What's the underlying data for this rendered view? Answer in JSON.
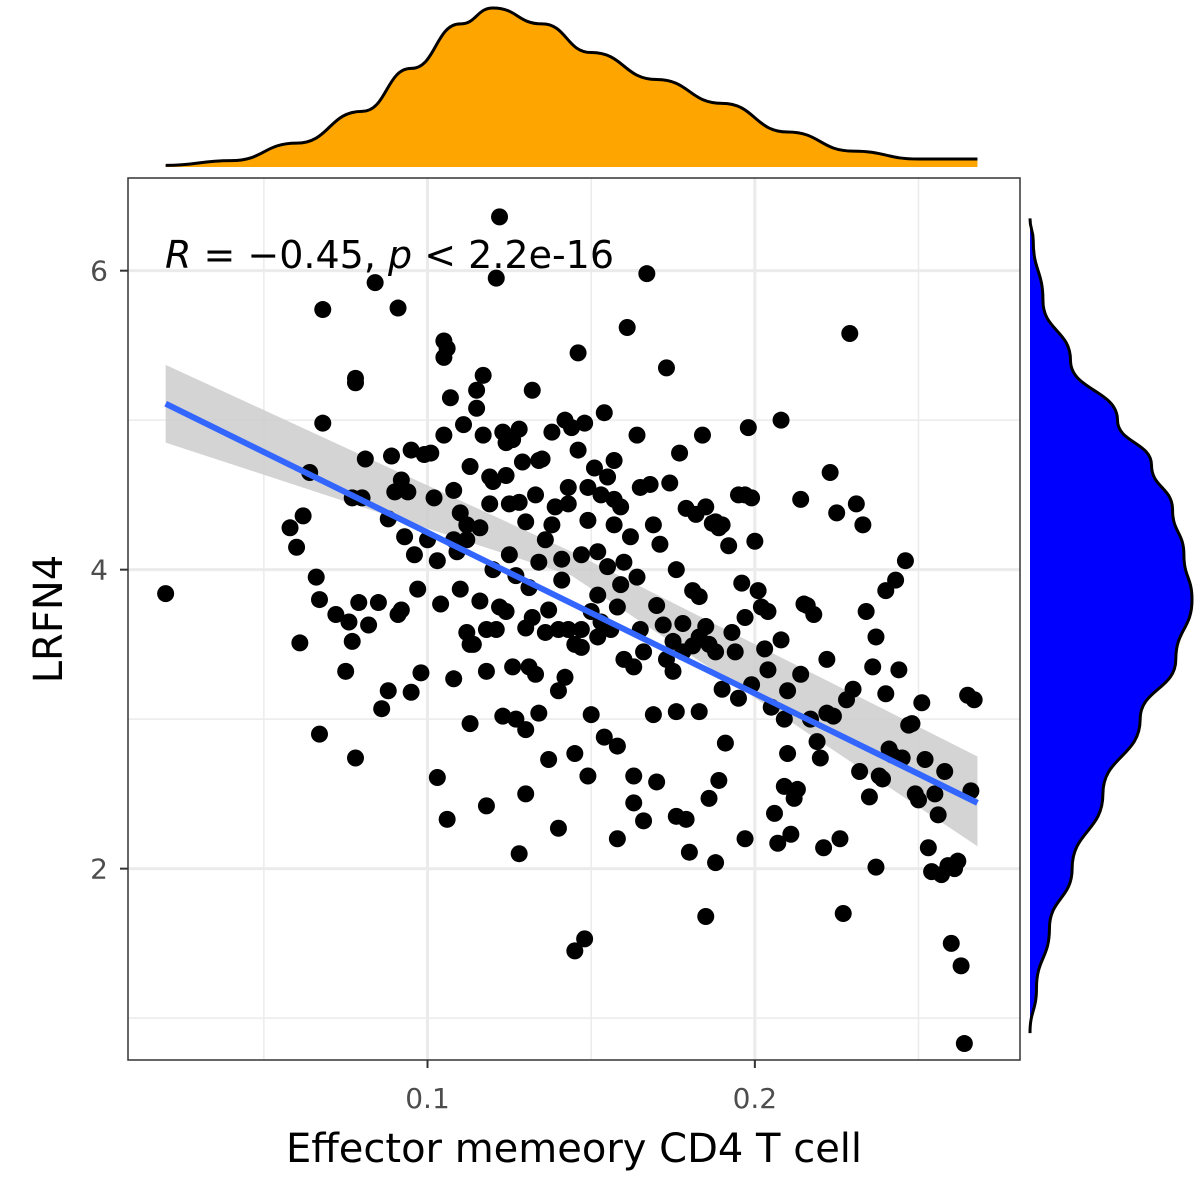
{
  "chart_data": {
    "type": "scatter",
    "xlabel": "Effector memeory CD4 T cell",
    "ylabel": "LRFN4",
    "annotation": {
      "R": "R",
      "eq": " = −0.45, ",
      "p": "p",
      "rest": " < 2.2e-16"
    },
    "xlim": [
      0.0085,
      0.281
    ],
    "ylim": [
      0.72,
      6.62
    ],
    "x_ticks": [
      {
        "value": 0.1,
        "label": "0.1"
      },
      {
        "value": 0.2,
        "label": "0.2"
      }
    ],
    "y_ticks": [
      {
        "value": 2,
        "label": "2"
      },
      {
        "value": 4,
        "label": "4"
      },
      {
        "value": 6,
        "label": "6"
      }
    ],
    "x_minor": [
      0.05,
      0.15,
      0.25
    ],
    "y_minor": [
      1.0,
      3.0,
      5.0
    ],
    "grid": true,
    "regression": {
      "x_start": 0.02,
      "y_start": 5.11,
      "x_end": 0.268,
      "y_end": 2.44,
      "ci_upper_start": 5.37,
      "ci_lower_start": 4.85,
      "ci_upper_mid": 4.12,
      "ci_lower_mid": 3.96,
      "ci_upper_end": 2.75,
      "ci_lower_end": 2.15,
      "color": "#3366ff",
      "ci_color": "#cccccc"
    },
    "marginal_x": {
      "color": "#ffa500",
      "density": [
        [
          0.02,
          0.01
        ],
        [
          0.04,
          0.04
        ],
        [
          0.06,
          0.15
        ],
        [
          0.08,
          0.35
        ],
        [
          0.095,
          0.62
        ],
        [
          0.11,
          0.9
        ],
        [
          0.12,
          1.0
        ],
        [
          0.135,
          0.9
        ],
        [
          0.15,
          0.72
        ],
        [
          0.17,
          0.55
        ],
        [
          0.19,
          0.4
        ],
        [
          0.21,
          0.22
        ],
        [
          0.23,
          0.1
        ],
        [
          0.25,
          0.05
        ],
        [
          0.268,
          0.05
        ]
      ]
    },
    "marginal_y": {
      "color": "#0000ff",
      "density": [
        [
          0.9,
          0.0
        ],
        [
          1.2,
          0.04
        ],
        [
          1.6,
          0.12
        ],
        [
          2.0,
          0.26
        ],
        [
          2.5,
          0.45
        ],
        [
          3.0,
          0.68
        ],
        [
          3.4,
          0.9
        ],
        [
          3.8,
          1.0
        ],
        [
          4.1,
          0.95
        ],
        [
          4.4,
          0.88
        ],
        [
          4.7,
          0.75
        ],
        [
          5.0,
          0.54
        ],
        [
          5.4,
          0.25
        ],
        [
          5.8,
          0.08
        ],
        [
          6.2,
          0.02
        ],
        [
          6.35,
          0.0
        ]
      ]
    },
    "points": [
      [
        0.02,
        3.84
      ],
      [
        0.058,
        4.28
      ],
      [
        0.06,
        4.15
      ],
      [
        0.061,
        3.51
      ],
      [
        0.062,
        4.36
      ],
      [
        0.064,
        4.65
      ],
      [
        0.066,
        3.95
      ],
      [
        0.067,
        3.8
      ],
      [
        0.067,
        2.9
      ],
      [
        0.068,
        4.98
      ],
      [
        0.068,
        5.74
      ],
      [
        0.072,
        3.7
      ],
      [
        0.075,
        3.32
      ],
      [
        0.076,
        3.65
      ],
      [
        0.077,
        4.48
      ],
      [
        0.077,
        3.52
      ],
      [
        0.078,
        5.28
      ],
      [
        0.078,
        5.25
      ],
      [
        0.078,
        2.74
      ],
      [
        0.079,
        3.78
      ],
      [
        0.08,
        4.48
      ],
      [
        0.081,
        4.74
      ],
      [
        0.082,
        3.63
      ],
      [
        0.084,
        5.92
      ],
      [
        0.085,
        3.78
      ],
      [
        0.086,
        3.07
      ],
      [
        0.088,
        3.19
      ],
      [
        0.088,
        4.34
      ],
      [
        0.089,
        4.76
      ],
      [
        0.09,
        4.52
      ],
      [
        0.091,
        5.75
      ],
      [
        0.091,
        3.7
      ],
      [
        0.092,
        4.6
      ],
      [
        0.092,
        3.73
      ],
      [
        0.093,
        4.22
      ],
      [
        0.094,
        4.52
      ],
      [
        0.095,
        4.8
      ],
      [
        0.095,
        3.18
      ],
      [
        0.096,
        4.1
      ],
      [
        0.097,
        3.87
      ],
      [
        0.098,
        3.31
      ],
      [
        0.099,
        4.77
      ],
      [
        0.1,
        4.2
      ],
      [
        0.101,
        4.78
      ],
      [
        0.102,
        4.48
      ],
      [
        0.103,
        4.06
      ],
      [
        0.104,
        3.77
      ],
      [
        0.105,
        5.53
      ],
      [
        0.105,
        4.9
      ],
      [
        0.106,
        5.48
      ],
      [
        0.106,
        2.33
      ],
      [
        0.107,
        5.15
      ],
      [
        0.108,
        4.2
      ],
      [
        0.109,
        4.12
      ],
      [
        0.11,
        4.38
      ],
      [
        0.11,
        3.87
      ],
      [
        0.111,
        4.97
      ],
      [
        0.112,
        4.3
      ],
      [
        0.113,
        4.69
      ],
      [
        0.113,
        2.97
      ],
      [
        0.114,
        3.5
      ],
      [
        0.115,
        5.08
      ],
      [
        0.115,
        5.2
      ],
      [
        0.116,
        4.28
      ],
      [
        0.116,
        3.79
      ],
      [
        0.117,
        4.9
      ],
      [
        0.117,
        5.3
      ],
      [
        0.118,
        3.6
      ],
      [
        0.118,
        3.32
      ],
      [
        0.119,
        4.44
      ],
      [
        0.12,
        4.59
      ],
      [
        0.12,
        4.0
      ],
      [
        0.121,
        5.95
      ],
      [
        0.122,
        3.75
      ],
      [
        0.123,
        4.92
      ],
      [
        0.123,
        3.02
      ],
      [
        0.124,
        4.85
      ],
      [
        0.124,
        3.72
      ],
      [
        0.125,
        4.44
      ],
      [
        0.125,
        4.1
      ],
      [
        0.126,
        3.35
      ],
      [
        0.127,
        3.96
      ],
      [
        0.127,
        3.0
      ],
      [
        0.128,
        4.94
      ],
      [
        0.128,
        4.45
      ],
      [
        0.129,
        4.72
      ],
      [
        0.13,
        4.32
      ],
      [
        0.13,
        3.61
      ],
      [
        0.13,
        2.93
      ],
      [
        0.131,
        3.88
      ],
      [
        0.131,
        3.35
      ],
      [
        0.132,
        5.2
      ],
      [
        0.133,
        4.5
      ],
      [
        0.133,
        3.3
      ],
      [
        0.134,
        3.04
      ],
      [
        0.134,
        4.05
      ],
      [
        0.135,
        4.74
      ],
      [
        0.136,
        4.2
      ],
      [
        0.136,
        3.58
      ],
      [
        0.137,
        3.73
      ],
      [
        0.137,
        2.73
      ],
      [
        0.138,
        4.3
      ],
      [
        0.139,
        4.42
      ],
      [
        0.14,
        3.6
      ],
      [
        0.14,
        3.19
      ],
      [
        0.141,
        4.07
      ],
      [
        0.142,
        5.0
      ],
      [
        0.142,
        3.28
      ],
      [
        0.143,
        4.55
      ],
      [
        0.143,
        3.6
      ],
      [
        0.144,
        4.95
      ],
      [
        0.145,
        3.5
      ],
      [
        0.145,
        2.77
      ],
      [
        0.146,
        5.45
      ],
      [
        0.146,
        4.8
      ],
      [
        0.147,
        4.1
      ],
      [
        0.147,
        3.6
      ],
      [
        0.148,
        4.98
      ],
      [
        0.149,
        4.55
      ],
      [
        0.149,
        4.33
      ],
      [
        0.15,
        3.72
      ],
      [
        0.15,
        3.03
      ],
      [
        0.151,
        4.68
      ],
      [
        0.152,
        4.12
      ],
      [
        0.152,
        3.55
      ],
      [
        0.153,
        4.5
      ],
      [
        0.153,
        3.65
      ],
      [
        0.154,
        5.05
      ],
      [
        0.155,
        4.62
      ],
      [
        0.155,
        4.02
      ],
      [
        0.156,
        3.6
      ],
      [
        0.157,
        4.73
      ],
      [
        0.157,
        4.3
      ],
      [
        0.158,
        3.75
      ],
      [
        0.158,
        2.82
      ],
      [
        0.159,
        4.42
      ],
      [
        0.16,
        4.05
      ],
      [
        0.16,
        3.4
      ],
      [
        0.161,
        5.62
      ],
      [
        0.162,
        4.22
      ],
      [
        0.163,
        3.35
      ],
      [
        0.163,
        2.44
      ],
      [
        0.164,
        3.95
      ],
      [
        0.165,
        4.55
      ],
      [
        0.165,
        3.6
      ],
      [
        0.166,
        2.32
      ],
      [
        0.167,
        5.98
      ],
      [
        0.168,
        4.57
      ],
      [
        0.169,
        4.3
      ],
      [
        0.17,
        3.76
      ],
      [
        0.17,
        2.58
      ],
      [
        0.171,
        4.17
      ],
      [
        0.172,
        3.63
      ],
      [
        0.173,
        5.35
      ],
      [
        0.174,
        4.58
      ],
      [
        0.175,
        3.52
      ],
      [
        0.175,
        3.32
      ],
      [
        0.176,
        4.0
      ],
      [
        0.176,
        3.05
      ],
      [
        0.177,
        4.78
      ],
      [
        0.178,
        3.64
      ],
      [
        0.178,
        3.45
      ],
      [
        0.179,
        4.41
      ],
      [
        0.179,
        2.33
      ],
      [
        0.18,
        2.11
      ],
      [
        0.181,
        3.86
      ],
      [
        0.182,
        4.37
      ],
      [
        0.183,
        3.82
      ],
      [
        0.183,
        3.55
      ],
      [
        0.184,
        4.9
      ],
      [
        0.185,
        4.42
      ],
      [
        0.185,
        3.62
      ],
      [
        0.186,
        3.5
      ],
      [
        0.186,
        2.47
      ],
      [
        0.187,
        4.31
      ],
      [
        0.188,
        4.32
      ],
      [
        0.188,
        3.45
      ],
      [
        0.189,
        4.28
      ],
      [
        0.189,
        2.59
      ],
      [
        0.19,
        4.3
      ],
      [
        0.191,
        2.84
      ],
      [
        0.192,
        4.16
      ],
      [
        0.193,
        3.58
      ],
      [
        0.194,
        3.45
      ],
      [
        0.195,
        4.5
      ],
      [
        0.196,
        3.91
      ],
      [
        0.197,
        4.5
      ],
      [
        0.197,
        3.68
      ],
      [
        0.198,
        4.95
      ],
      [
        0.199,
        4.48
      ],
      [
        0.199,
        3.23
      ],
      [
        0.2,
        4.19
      ],
      [
        0.201,
        3.86
      ],
      [
        0.202,
        3.75
      ],
      [
        0.203,
        3.47
      ],
      [
        0.204,
        3.72
      ],
      [
        0.205,
        3.08
      ],
      [
        0.206,
        2.37
      ],
      [
        0.207,
        2.17
      ],
      [
        0.208,
        5.0
      ],
      [
        0.208,
        3.53
      ],
      [
        0.209,
        2.55
      ],
      [
        0.21,
        2.77
      ],
      [
        0.211,
        2.23
      ],
      [
        0.212,
        2.47
      ],
      [
        0.213,
        2.53
      ],
      [
        0.214,
        4.47
      ],
      [
        0.215,
        3.77
      ],
      [
        0.216,
        3.76
      ],
      [
        0.217,
        3.0
      ],
      [
        0.218,
        3.7
      ],
      [
        0.219,
        2.85
      ],
      [
        0.22,
        2.74
      ],
      [
        0.221,
        2.14
      ],
      [
        0.222,
        3.04
      ],
      [
        0.223,
        4.65
      ],
      [
        0.224,
        3.02
      ],
      [
        0.225,
        4.38
      ],
      [
        0.226,
        2.2
      ],
      [
        0.227,
        1.7
      ],
      [
        0.228,
        3.13
      ],
      [
        0.229,
        5.58
      ],
      [
        0.23,
        3.2
      ],
      [
        0.231,
        4.44
      ],
      [
        0.232,
        2.65
      ],
      [
        0.233,
        4.3
      ],
      [
        0.234,
        3.72
      ],
      [
        0.235,
        2.48
      ],
      [
        0.236,
        3.35
      ],
      [
        0.237,
        3.55
      ],
      [
        0.238,
        2.62
      ],
      [
        0.239,
        2.6
      ],
      [
        0.24,
        3.17
      ],
      [
        0.241,
        2.8
      ],
      [
        0.242,
        2.76
      ],
      [
        0.243,
        3.93
      ],
      [
        0.244,
        3.33
      ],
      [
        0.245,
        2.74
      ],
      [
        0.246,
        4.06
      ],
      [
        0.247,
        2.96
      ],
      [
        0.248,
        2.97
      ],
      [
        0.249,
        2.5
      ],
      [
        0.25,
        2.46
      ],
      [
        0.251,
        3.11
      ],
      [
        0.252,
        2.73
      ],
      [
        0.253,
        2.14
      ],
      [
        0.254,
        1.98
      ],
      [
        0.255,
        2.5
      ],
      [
        0.256,
        2.36
      ],
      [
        0.257,
        1.96
      ],
      [
        0.258,
        2.65
      ],
      [
        0.259,
        2.02
      ],
      [
        0.26,
        1.5
      ],
      [
        0.261,
        2.0
      ],
      [
        0.262,
        2.05
      ],
      [
        0.263,
        1.35
      ],
      [
        0.264,
        0.83
      ],
      [
        0.265,
        3.16
      ],
      [
        0.266,
        2.52
      ],
      [
        0.267,
        3.13
      ],
      [
        0.122,
        6.36
      ],
      [
        0.105,
        5.42
      ],
      [
        0.148,
        1.53
      ],
      [
        0.128,
        2.1
      ],
      [
        0.158,
        2.2
      ],
      [
        0.145,
        1.45
      ],
      [
        0.185,
        1.68
      ],
      [
        0.237,
        2.01
      ],
      [
        0.149,
        2.62
      ],
      [
        0.103,
        2.61
      ],
      [
        0.118,
        2.42
      ],
      [
        0.163,
        2.62
      ],
      [
        0.176,
        2.35
      ],
      [
        0.188,
        2.04
      ],
      [
        0.197,
        2.2
      ],
      [
        0.14,
        2.27
      ],
      [
        0.13,
        2.5
      ],
      [
        0.113,
        3.5
      ],
      [
        0.154,
        2.88
      ],
      [
        0.169,
        3.03
      ],
      [
        0.108,
        3.27
      ],
      [
        0.121,
        3.6
      ],
      [
        0.143,
        4.44
      ],
      [
        0.157,
        4.47
      ],
      [
        0.134,
        4.73
      ],
      [
        0.164,
        4.9
      ],
      [
        0.119,
        4.62
      ],
      [
        0.126,
        4.87
      ],
      [
        0.138,
        4.92
      ],
      [
        0.112,
        4.2
      ],
      [
        0.124,
        4.63
      ],
      [
        0.141,
        3.93
      ],
      [
        0.152,
        3.83
      ],
      [
        0.166,
        3.45
      ],
      [
        0.181,
        3.49
      ],
      [
        0.19,
        3.2
      ],
      [
        0.204,
        3.33
      ],
      [
        0.209,
        3.0
      ],
      [
        0.214,
        3.3
      ],
      [
        0.112,
        3.58
      ],
      [
        0.108,
        4.53
      ],
      [
        0.132,
        3.68
      ],
      [
        0.147,
        3.48
      ],
      [
        0.159,
        3.9
      ],
      [
        0.173,
        3.4
      ],
      [
        0.183,
        3.05
      ],
      [
        0.195,
        3.14
      ],
      [
        0.21,
        3.19
      ],
      [
        0.222,
        3.4
      ],
      [
        0.24,
        3.86
      ]
    ]
  }
}
